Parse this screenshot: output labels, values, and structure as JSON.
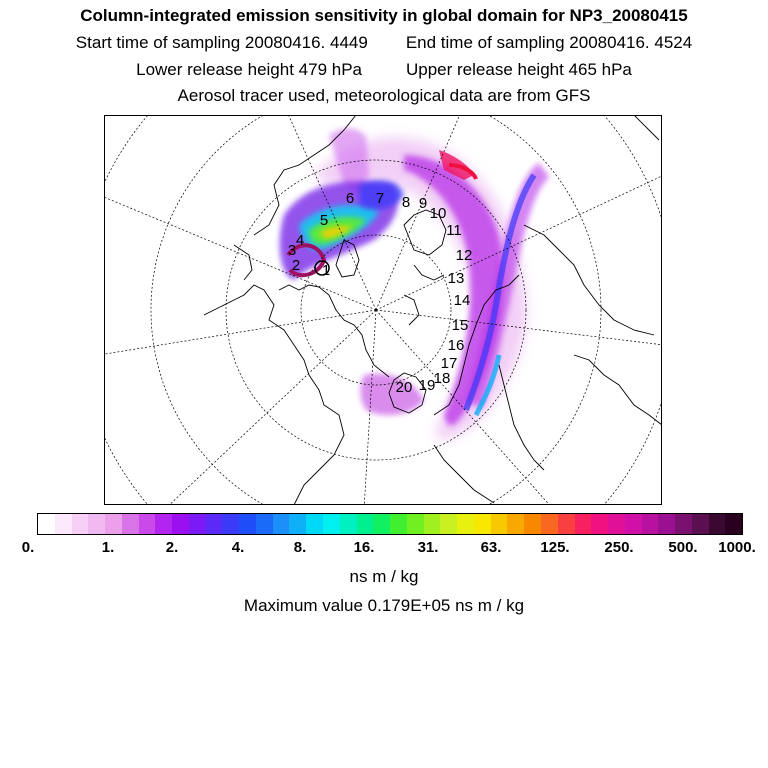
{
  "header": {
    "title": "Column-integrated emission sensitivity in global domain for NP3_20080415",
    "start_label": "Start time of sampling 20080416.  4449",
    "end_label": "End time of sampling 20080416.  4524",
    "lower_label": "Lower release height  479 hPa",
    "upper_label": "Upper release height  465 hPa",
    "tracer_label": "Aerosol tracer used, meteorological data are from GFS"
  },
  "map": {
    "day_labels": [
      "1",
      "2",
      "3",
      "4",
      "5",
      "6",
      "7",
      "8",
      "9",
      "10",
      "11",
      "12",
      "13",
      "14",
      "15",
      "16",
      "17",
      "18",
      "19",
      "20"
    ]
  },
  "colorbar": {
    "tick_labels": [
      "0.",
      "1.",
      "2.",
      "4.",
      "8.",
      "16.",
      "31.",
      "63.",
      "125.",
      "250.",
      "500.",
      "1000."
    ],
    "colors": [
      "#ffffff",
      "#fbe8fb",
      "#f6d0f6",
      "#f1b8f1",
      "#eca0ec",
      "#d873e8",
      "#c94ae8",
      "#b324ee",
      "#9a10f0",
      "#7c1af5",
      "#5c2af8",
      "#3a3af8",
      "#1e4ef8",
      "#1a6cf8",
      "#1a90f8",
      "#10b0f8",
      "#00d8f8",
      "#00f0f0",
      "#00f0c0",
      "#00f090",
      "#10f060",
      "#40f030",
      "#70f020",
      "#a0f020",
      "#c8f020",
      "#e8f010",
      "#f8e800",
      "#f8c800",
      "#f8a800",
      "#f88800",
      "#f86820",
      "#f84040",
      "#f82060",
      "#f01080",
      "#e01098",
      "#d010a8",
      "#b810a0",
      "#9a1090",
      "#7a1070",
      "#5a1050",
      "#3a0830",
      "#2a0020"
    ],
    "units": "ns m / kg",
    "max_label": "Maximum value  0.179E+05 ns m / kg"
  }
}
